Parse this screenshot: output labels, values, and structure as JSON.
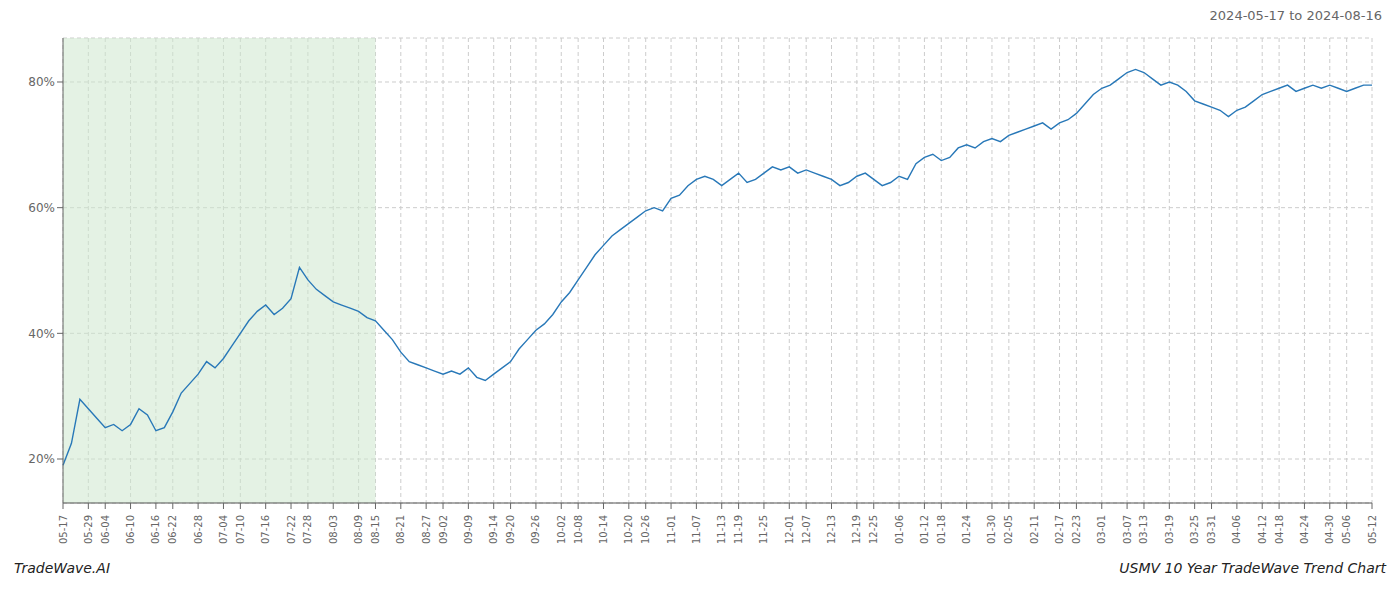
{
  "chart_data": {
    "type": "line",
    "title": "2024-05-17 to 2024-08-16",
    "annotations": [
      "TradeWave.AI",
      "USMV 10 Year TradeWave Trend Chart"
    ],
    "color": "#2878b8",
    "grid": true,
    "ylim": [
      13,
      87
    ],
    "yticks": [
      {
        "value": 20,
        "label": "20%"
      },
      {
        "value": 40,
        "label": "40%"
      },
      {
        "value": 60,
        "label": "60%"
      },
      {
        "value": 80,
        "label": "80%"
      }
    ],
    "shaded_region": {
      "from": "05-17",
      "to": "08-15",
      "color": "#cde8cd"
    },
    "categories": [
      "05-17",
      null,
      null,
      "05-29",
      null,
      "06-04",
      null,
      null,
      "06-10",
      null,
      null,
      "06-16",
      null,
      "06-22",
      null,
      null,
      "06-28",
      null,
      null,
      "07-04",
      null,
      "07-10",
      null,
      null,
      "07-16",
      null,
      null,
      "07-22",
      null,
      "07-28",
      null,
      null,
      "08-03",
      null,
      null,
      "08-09",
      null,
      "08-15",
      null,
      null,
      "08-21",
      null,
      null,
      "08-27",
      null,
      "09-02",
      null,
      null,
      "09-09",
      null,
      null,
      "09-14",
      null,
      "09-20",
      null,
      null,
      "09-26",
      null,
      null,
      "10-02",
      null,
      "10-08",
      null,
      null,
      "10-14",
      null,
      null,
      "10-20",
      null,
      "10-26",
      null,
      null,
      "11-01",
      null,
      null,
      "11-07",
      null,
      null,
      "11-13",
      null,
      "11-19",
      null,
      null,
      "11-25",
      null,
      null,
      "12-01",
      null,
      "12-07",
      null,
      null,
      "12-13",
      null,
      null,
      "12-19",
      null,
      "12-25",
      null,
      null,
      "01-06",
      null,
      null,
      "01-12",
      null,
      "01-18",
      null,
      null,
      "01-24",
      null,
      null,
      "01-30",
      null,
      "02-05",
      null,
      null,
      "02-11",
      null,
      null,
      "02-17",
      null,
      "02-23",
      null,
      null,
      "03-01",
      null,
      null,
      "03-07",
      null,
      "03-13",
      null,
      null,
      "03-19",
      null,
      null,
      "03-25",
      null,
      "03-31",
      null,
      null,
      "04-06",
      null,
      null,
      "04-12",
      null,
      "04-18",
      null,
      null,
      "04-24",
      null,
      null,
      "04-30",
      null,
      "05-06",
      null,
      null,
      "05-12"
    ],
    "values": [
      19.0,
      22.5,
      29.5,
      28.0,
      26.5,
      25.0,
      25.5,
      24.5,
      25.5,
      28.0,
      27.0,
      24.5,
      25.0,
      27.5,
      30.5,
      32.0,
      33.5,
      35.5,
      34.5,
      36.0,
      38.0,
      40.0,
      42.0,
      43.5,
      44.5,
      43.0,
      44.0,
      45.5,
      50.5,
      48.5,
      47.0,
      46.0,
      45.0,
      44.5,
      44.0,
      43.5,
      42.5,
      42.0,
      40.5,
      39.0,
      37.0,
      35.5,
      35.0,
      34.5,
      34.0,
      33.5,
      34.0,
      33.5,
      34.5,
      33.0,
      32.5,
      33.5,
      34.5,
      35.5,
      37.5,
      39.0,
      40.5,
      41.5,
      43.0,
      45.0,
      46.5,
      48.5,
      50.5,
      52.5,
      54.0,
      55.5,
      56.5,
      57.5,
      58.5,
      59.5,
      60.0,
      59.5,
      61.5,
      62.0,
      63.5,
      64.5,
      65.0,
      64.5,
      63.5,
      64.5,
      65.5,
      64.0,
      64.5,
      65.5,
      66.5,
      66.0,
      66.5,
      65.5,
      66.0,
      65.5,
      65.0,
      64.5,
      63.5,
      64.0,
      65.0,
      65.5,
      64.5,
      63.5,
      64.0,
      65.0,
      64.5,
      67.0,
      68.0,
      68.5,
      67.5,
      68.0,
      69.5,
      70.0,
      69.5,
      70.5,
      71.0,
      70.5,
      71.5,
      72.0,
      72.5,
      73.0,
      73.5,
      72.5,
      73.5,
      74.0,
      75.0,
      76.5,
      78.0,
      79.0,
      79.5,
      80.5,
      81.5,
      82.0,
      81.5,
      80.5,
      79.5,
      80.0,
      79.5,
      78.5,
      77.0,
      76.5,
      76.0,
      75.5,
      74.5,
      75.5,
      76.0,
      77.0,
      78.0,
      78.5,
      79.0,
      79.5,
      78.5,
      79.0,
      79.5,
      79.0,
      79.5,
      79.0,
      78.5,
      79.0,
      79.5,
      79.5
    ]
  }
}
